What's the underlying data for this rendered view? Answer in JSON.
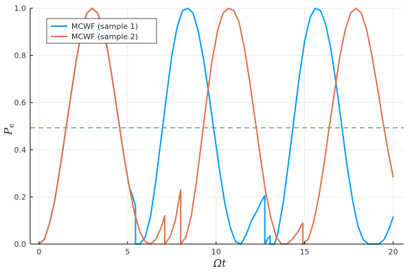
{
  "chart_data": {
    "type": "line",
    "title": "",
    "xlabel": "Ωt",
    "ylabel": "P_e",
    "ylabel_main": "P",
    "ylabel_sub": "e",
    "xlim": [
      -0.5,
      20.6
    ],
    "ylim": [
      0,
      1
    ],
    "xticks": [
      0,
      5,
      10,
      15,
      20
    ],
    "yticks": [
      0.0,
      0.2,
      0.4,
      0.6,
      0.8,
      1.0
    ],
    "xtick_labels": [
      "0",
      "5",
      "10",
      "15",
      "20"
    ],
    "ytick_labels": [
      "0.0",
      "0.2",
      "0.4",
      "0.6",
      "0.8",
      "1.0"
    ],
    "grid": true,
    "legend_position": "top-left",
    "reference_line": {
      "y": 0.493,
      "color": "#3da44d",
      "style": "dashed"
    },
    "series": [
      {
        "name": "MCWF (sample 1)",
        "color": "#009afa",
        "x": [
          0,
          0.3,
          0.6,
          0.9,
          1.2,
          1.5,
          1.8,
          2.1,
          2.4,
          2.7,
          3.0,
          3.3,
          3.6,
          3.9,
          4.2,
          4.5,
          4.8,
          5.1,
          5.3,
          5.45,
          5.45,
          5.7,
          6.0,
          6.3,
          6.6,
          6.9,
          7.2,
          7.5,
          7.8,
          8.1,
          8.4,
          8.7,
          9.0,
          9.3,
          9.6,
          9.9,
          10.2,
          10.5,
          10.8,
          11.1,
          11.4,
          11.7,
          12.0,
          12.3,
          12.55,
          12.75,
          12.75,
          12.9,
          13.05,
          13.05,
          13.3,
          13.5,
          13.8,
          14.1,
          14.4,
          14.7,
          15.0,
          15.3,
          15.6,
          15.9,
          16.2,
          16.5,
          16.8,
          17.1,
          17.4,
          17.7,
          18.0,
          18.3,
          18.6,
          18.9,
          19.2,
          19.5,
          19.8,
          20.0
        ],
        "y": [
          0.0,
          0.02,
          0.09,
          0.19,
          0.33,
          0.48,
          0.63,
          0.78,
          0.9,
          0.98,
          1.0,
          0.98,
          0.92,
          0.81,
          0.67,
          0.52,
          0.37,
          0.24,
          0.2,
          0.16,
          0.0,
          0.0,
          0.03,
          0.12,
          0.27,
          0.45,
          0.63,
          0.8,
          0.92,
          0.99,
          1.0,
          0.98,
          0.9,
          0.78,
          0.63,
          0.47,
          0.31,
          0.17,
          0.07,
          0.01,
          0.0,
          0.04,
          0.1,
          0.14,
          0.18,
          0.205,
          0.0,
          0.02,
          0.035,
          0.0,
          0.0,
          0.05,
          0.18,
          0.35,
          0.53,
          0.71,
          0.86,
          0.96,
          1.0,
          0.99,
          0.93,
          0.82,
          0.67,
          0.5,
          0.33,
          0.19,
          0.08,
          0.02,
          0.0,
          0.0,
          0.0,
          0.02,
          0.07,
          0.115
        ]
      },
      {
        "name": "MCWF (sample 2)",
        "color": "#e26f46",
        "x": [
          0,
          0.3,
          0.6,
          0.9,
          1.2,
          1.5,
          1.8,
          2.1,
          2.4,
          2.7,
          3.0,
          3.3,
          3.6,
          3.9,
          4.2,
          4.5,
          4.8,
          5.1,
          5.4,
          5.7,
          6.0,
          6.3,
          6.6,
          6.9,
          7.1,
          7.1,
          7.4,
          7.7,
          8.0,
          8.0,
          8.3,
          8.6,
          8.9,
          9.2,
          9.5,
          9.8,
          10.1,
          10.4,
          10.7,
          11.0,
          11.3,
          11.6,
          11.9,
          12.2,
          12.5,
          12.8,
          13.1,
          13.4,
          13.7,
          14.0,
          14.3,
          14.6,
          14.9,
          14.9,
          15.2,
          15.5,
          15.8,
          16.1,
          16.4,
          16.7,
          17.0,
          17.3,
          17.6,
          17.9,
          18.2,
          18.5,
          18.8,
          19.1,
          19.4,
          19.7,
          20.0
        ],
        "y": [
          0.0,
          0.02,
          0.09,
          0.19,
          0.33,
          0.48,
          0.63,
          0.78,
          0.9,
          0.98,
          1.0,
          0.98,
          0.92,
          0.81,
          0.67,
          0.52,
          0.37,
          0.24,
          0.13,
          0.05,
          0.01,
          0.0,
          0.02,
          0.07,
          0.12,
          0.0,
          0.03,
          0.1,
          0.23,
          0.0,
          0.03,
          0.12,
          0.27,
          0.45,
          0.63,
          0.79,
          0.91,
          0.98,
          1.0,
          0.99,
          0.94,
          0.83,
          0.69,
          0.53,
          0.37,
          0.22,
          0.11,
          0.03,
          0.0,
          0.0,
          0.02,
          0.05,
          0.09,
          0.0,
          0.02,
          0.09,
          0.2,
          0.34,
          0.5,
          0.65,
          0.8,
          0.91,
          0.98,
          1.0,
          0.98,
          0.91,
          0.8,
          0.67,
          0.53,
          0.4,
          0.285
        ]
      }
    ]
  }
}
